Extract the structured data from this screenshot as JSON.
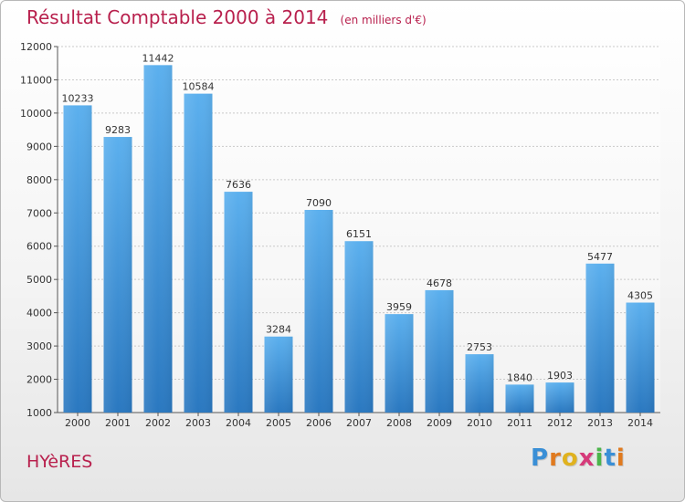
{
  "title": "Résultat Comptable 2000 à 2014",
  "unit_note": "(en milliers d'€)",
  "city": "HYèRES",
  "logo": {
    "text": "Proxiti",
    "letter_colors": [
      "#3a8fd6",
      "#e07a1f",
      "#e0b21f",
      "#d63a7a",
      "#4bb54a",
      "#3a8fd6",
      "#e07a1f"
    ]
  },
  "colors": {
    "title": "#b8204d",
    "bar": "#4a9fe0",
    "bar_dark": "#2a78c0"
  },
  "chart_data": {
    "type": "bar",
    "categories": [
      "2000",
      "2001",
      "2002",
      "2003",
      "2004",
      "2005",
      "2006",
      "2007",
      "2008",
      "2009",
      "2010",
      "2011",
      "2012",
      "2013",
      "2014"
    ],
    "values": [
      10233,
      9283,
      11442,
      10584,
      7636,
      3284,
      7090,
      6151,
      3959,
      4678,
      2753,
      1840,
      1903,
      5477,
      4305
    ],
    "ylim": [
      1000,
      12000
    ],
    "yticks": [
      1000,
      2000,
      3000,
      4000,
      5000,
      6000,
      7000,
      8000,
      9000,
      10000,
      11000,
      12000
    ],
    "grid": true
  }
}
